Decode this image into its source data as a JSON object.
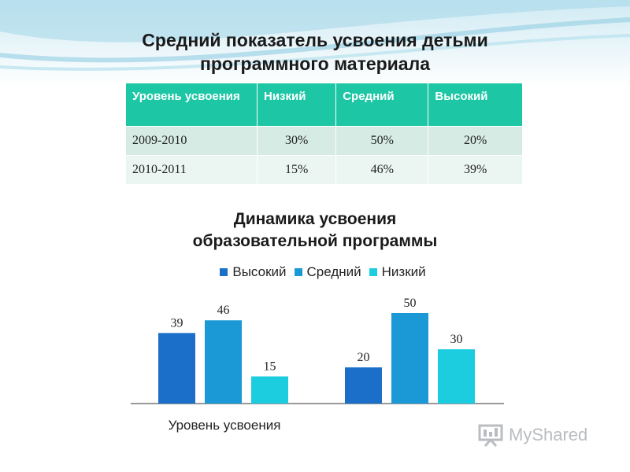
{
  "slide": {
    "title_line1": "Средний  показатель усвоения детьми",
    "title_line2": "программного материала"
  },
  "table": {
    "headers": [
      "Уровень усвоения",
      "Низкий",
      "Средний",
      "Высокий"
    ],
    "rows": [
      [
        "2009-2010",
        "30%",
        "50%",
        "20%"
      ],
      [
        "2010-2011",
        "15%",
        "46%",
        "39%"
      ]
    ]
  },
  "chart_data": {
    "type": "bar",
    "title_line1": "Динамика усвоения",
    "title_line2": "образовательной программы",
    "xlabel": "Уровень усвоения",
    "legend_position": "top",
    "grid": false,
    "ylim": [
      0,
      60
    ],
    "groups": 2,
    "series": [
      {
        "name": "Высокий",
        "color": "#1b6fc8",
        "values": [
          39,
          20
        ]
      },
      {
        "name": "Средний",
        "color": "#1a99d6",
        "values": [
          46,
          50
        ]
      },
      {
        "name": "Низкий",
        "color": "#1ccde0",
        "values": [
          15,
          30
        ]
      }
    ]
  },
  "logo": {
    "text": "MyShared"
  }
}
